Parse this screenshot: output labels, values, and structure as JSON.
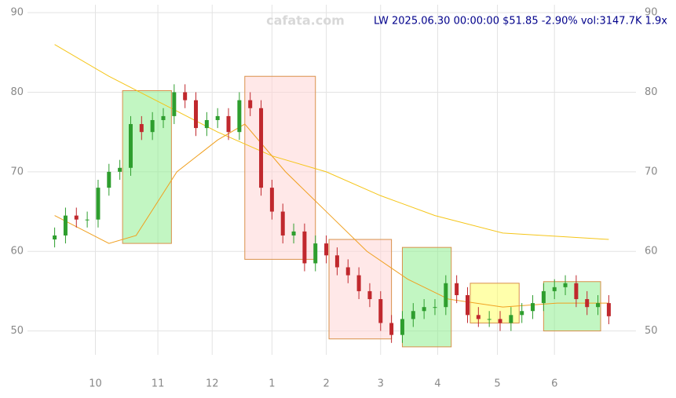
{
  "chart_data": {
    "type": "candlestick",
    "title": "LW 2025.06.30 00:00:00 $51.85 -2.90% vol:3147.7K 1.9x",
    "watermark": "cafata.com",
    "x": [
      0,
      4,
      8,
      12,
      16,
      20,
      24,
      28,
      32,
      36,
      40,
      44,
      48,
      52,
      56,
      60,
      64,
      68,
      72,
      76,
      80,
      84,
      88,
      92,
      96,
      100,
      104,
      108,
      112,
      116,
      120,
      124,
      128,
      132,
      136,
      140,
      144,
      148,
      152,
      156,
      160,
      164,
      168,
      172,
      176,
      180,
      184,
      188,
      192,
      196,
      200,
      204
    ],
    "open": [
      61.5,
      62,
      64.5,
      64,
      64,
      68,
      70,
      70.5,
      76,
      75,
      76.5,
      77,
      80,
      79,
      75.5,
      76.5,
      77,
      75,
      79,
      78,
      68,
      65,
      62,
      62.5,
      58.5,
      61,
      59.5,
      58,
      57,
      55,
      54,
      51,
      49.5,
      51.5,
      52.5,
      53,
      53,
      56,
      54.5,
      52,
      51.5,
      51.5,
      51,
      52,
      52.5,
      53.5,
      55,
      55.5,
      56,
      54,
      53,
      53.5
    ],
    "high": [
      63,
      65.5,
      65.5,
      65,
      69,
      71,
      71.5,
      77,
      77,
      77.5,
      78,
      81,
      81,
      80,
      77.5,
      78,
      78,
      80,
      80,
      79,
      69,
      66,
      63.5,
      63.5,
      62,
      62,
      60.5,
      59,
      58,
      56,
      55,
      52,
      52.5,
      53.5,
      54,
      54,
      57,
      57,
      55.5,
      53,
      52.5,
      52.5,
      53,
      53.5,
      54.5,
      56,
      56.5,
      57,
      57,
      55,
      54.5,
      54.5
    ],
    "low": [
      60.5,
      61,
      63,
      63,
      63,
      67,
      69,
      69.5,
      74,
      74,
      75.5,
      76,
      78,
      74.5,
      74.5,
      75.5,
      74,
      74,
      77,
      67,
      64,
      61,
      61,
      57.5,
      57.5,
      58.5,
      57,
      56,
      54,
      53,
      50,
      48.5,
      48.5,
      50.5,
      51.5,
      52,
      52,
      53.5,
      51,
      50.5,
      50.5,
      50,
      50,
      51,
      51.5,
      52.5,
      54,
      54.5,
      53,
      52,
      52,
      50.85
    ],
    "close": [
      62,
      64.5,
      64,
      64,
      68,
      70,
      70.5,
      76,
      75,
      76.5,
      77,
      80,
      79,
      75.5,
      76.5,
      77,
      75,
      79,
      78,
      68,
      65,
      62,
      62.5,
      58.5,
      61,
      59.5,
      58,
      57,
      55,
      54,
      51,
      49.5,
      51.5,
      52.5,
      53,
      53,
      56,
      54.5,
      52,
      51.5,
      51.5,
      51,
      52,
      52.5,
      53.5,
      55,
      55.5,
      56,
      54,
      53,
      53.5,
      51.85
    ],
    "up_color": "#2e9e2e",
    "down_color": "#c0282d",
    "lines": [
      {
        "color": "#f5c518",
        "x": [
          0,
          20,
          40,
          60,
          80,
          100,
          120,
          140,
          165,
          204
        ],
        "values": [
          86,
          82,
          78.5,
          75,
          72,
          70,
          67,
          64.5,
          62.3,
          61.5
        ]
      },
      {
        "color": "#f0a020",
        "x": [
          0,
          20,
          30,
          45,
          60,
          70,
          85,
          100,
          115,
          130,
          145,
          165,
          185,
          204
        ],
        "values": [
          64.5,
          61,
          62,
          70,
          74,
          76,
          70,
          65,
          60,
          56.5,
          54,
          53,
          53.5,
          53.5
        ]
      }
    ],
    "zones": [
      {
        "x": [
          25,
          43
        ],
        "y": [
          61,
          80.2
        ],
        "color": "#8fef8f"
      },
      {
        "x": [
          70,
          96
        ],
        "y": [
          59,
          82
        ],
        "color": "#ffd6d6"
      },
      {
        "x": [
          101,
          124
        ],
        "y": [
          49,
          61.5
        ],
        "color": "#ffd6d6"
      },
      {
        "x": [
          128,
          146
        ],
        "y": [
          48,
          60.5
        ],
        "color": "#8fef8f"
      },
      {
        "x": [
          153,
          171
        ],
        "y": [
          51,
          56
        ],
        "color": "#ffff66"
      },
      {
        "x": [
          180,
          201
        ],
        "y": [
          50,
          56.2
        ],
        "color": "#8fef8f"
      }
    ],
    "xlim": [
      -10,
      214
    ],
    "ylim": [
      47,
      91
    ],
    "xticks": [
      {
        "value": 15,
        "label": "10"
      },
      {
        "value": 38,
        "label": "11"
      },
      {
        "value": 58,
        "label": "12"
      },
      {
        "value": 80,
        "label": "1"
      },
      {
        "value": 100,
        "label": "2"
      },
      {
        "value": 120,
        "label": "3"
      },
      {
        "value": 141,
        "label": "4"
      },
      {
        "value": 163,
        "label": "5"
      },
      {
        "value": 184,
        "label": "6"
      }
    ],
    "yticks": [
      50,
      60,
      70,
      80,
      90
    ],
    "grid": true
  }
}
